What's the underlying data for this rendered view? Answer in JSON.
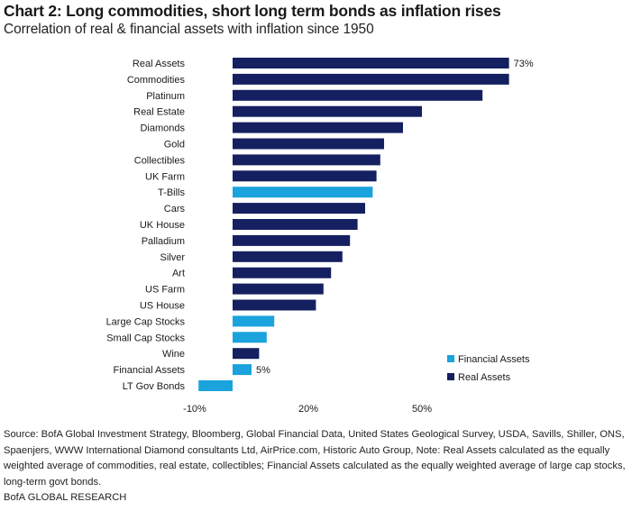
{
  "header": {
    "title": "Chart 2: Long commodities, short long term bonds as inflation rises",
    "subtitle": "Correlation of real & financial assets with inflation since 1950"
  },
  "colors": {
    "real_assets": "#142060",
    "financial_assets": "#1aa3dc"
  },
  "chart_data": {
    "type": "bar",
    "orientation": "horizontal",
    "title": "Chart 2: Long commodities, short long term bonds as inflation rises",
    "subtitle": "Correlation of real & financial assets with inflation since 1950",
    "categories": [
      "Real Assets",
      "Commodities",
      "Platinum",
      "Real Estate",
      "Diamonds",
      "Gold",
      "Collectibles",
      "UK Farm",
      "T-Bills",
      "Cars",
      "UK House",
      "Palladium",
      "Silver",
      "Art",
      "US Farm",
      "US House",
      "Large Cap Stocks",
      "Small Cap Stocks",
      "Wine",
      "Financial Assets",
      "LT Gov Bonds"
    ],
    "values": [
      73,
      73,
      66,
      50,
      45,
      40,
      39,
      38,
      37,
      35,
      33,
      31,
      29,
      26,
      24,
      22,
      11,
      9,
      7,
      5,
      -9
    ],
    "groups": [
      "Real Assets",
      "Real Assets",
      "Real Assets",
      "Real Assets",
      "Real Assets",
      "Real Assets",
      "Real Assets",
      "Real Assets",
      "Financial Assets",
      "Real Assets",
      "Real Assets",
      "Real Assets",
      "Real Assets",
      "Real Assets",
      "Real Assets",
      "Real Assets",
      "Financial Assets",
      "Financial Assets",
      "Real Assets",
      "Financial Assets",
      "Financial Assets"
    ],
    "data_labels": [
      {
        "index": 0,
        "text": "73%"
      },
      {
        "index": 19,
        "text": "5%"
      }
    ],
    "xlim": [
      -10,
      80
    ],
    "xticks": [
      {
        "value": -10,
        "label": "-10%"
      },
      {
        "value": 20,
        "label": "20%"
      },
      {
        "value": 50,
        "label": "50%"
      }
    ],
    "grid": false,
    "legend": {
      "position": "bottom-right",
      "entries": [
        "Financial Assets",
        "Real Assets"
      ]
    },
    "xlabel": "",
    "ylabel": ""
  },
  "footer": {
    "source": "Source:  BofA Global Investment Strategy, Bloomberg, Global Financial Data, United States Geological Survey, USDA, Savills, Shiller, ONS, Spaenjers, WWW International Diamond consultants Ltd, AirPrice.com, Historic Auto Group, Note: Real Assets calculated as the equally weighted average of commodities, real estate, collectibles; Financial Assets calculated as the equally weighted average of large cap stocks, long-term govt bonds.",
    "brand": "BofA GLOBAL RESEARCH"
  }
}
